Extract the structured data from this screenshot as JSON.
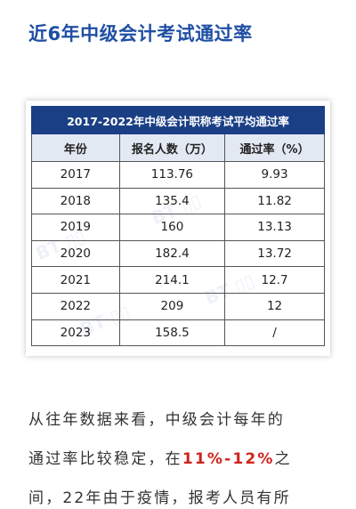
{
  "heading": "近6年中级会计考试通过率",
  "table": {
    "caption": "2017-2022年中级会计职称考试平均通过率",
    "columns": [
      "年份",
      "报名人数（万）",
      "通过率（%）"
    ],
    "rows": [
      {
        "year": "2017",
        "applicants": "113.76",
        "pass_rate": "9.93"
      },
      {
        "year": "2018",
        "applicants": "135.4",
        "pass_rate": "11.82"
      },
      {
        "year": "2019",
        "applicants": "160",
        "pass_rate": "13.13"
      },
      {
        "year": "2020",
        "applicants": "182.4",
        "pass_rate": "13.72"
      },
      {
        "year": "2021",
        "applicants": "214.1",
        "pass_rate": "12.7"
      },
      {
        "year": "2022",
        "applicants": "209",
        "pass_rate": "12"
      },
      {
        "year": "2023",
        "applicants": "158.5",
        "pass_rate": "/"
      }
    ]
  },
  "paragraph": {
    "line1": "从往年数据来看，中级会计每年的",
    "line2_prefix": "通过率比较稳定，在",
    "line2_highlight": "11%-12%",
    "line2_suffix": "之",
    "line3": "间，22年由于疫情，报考人员有所"
  },
  "colors": {
    "heading": "#1f4fa3",
    "table_header": "#1a3f85",
    "highlight": "#d0231c"
  }
}
